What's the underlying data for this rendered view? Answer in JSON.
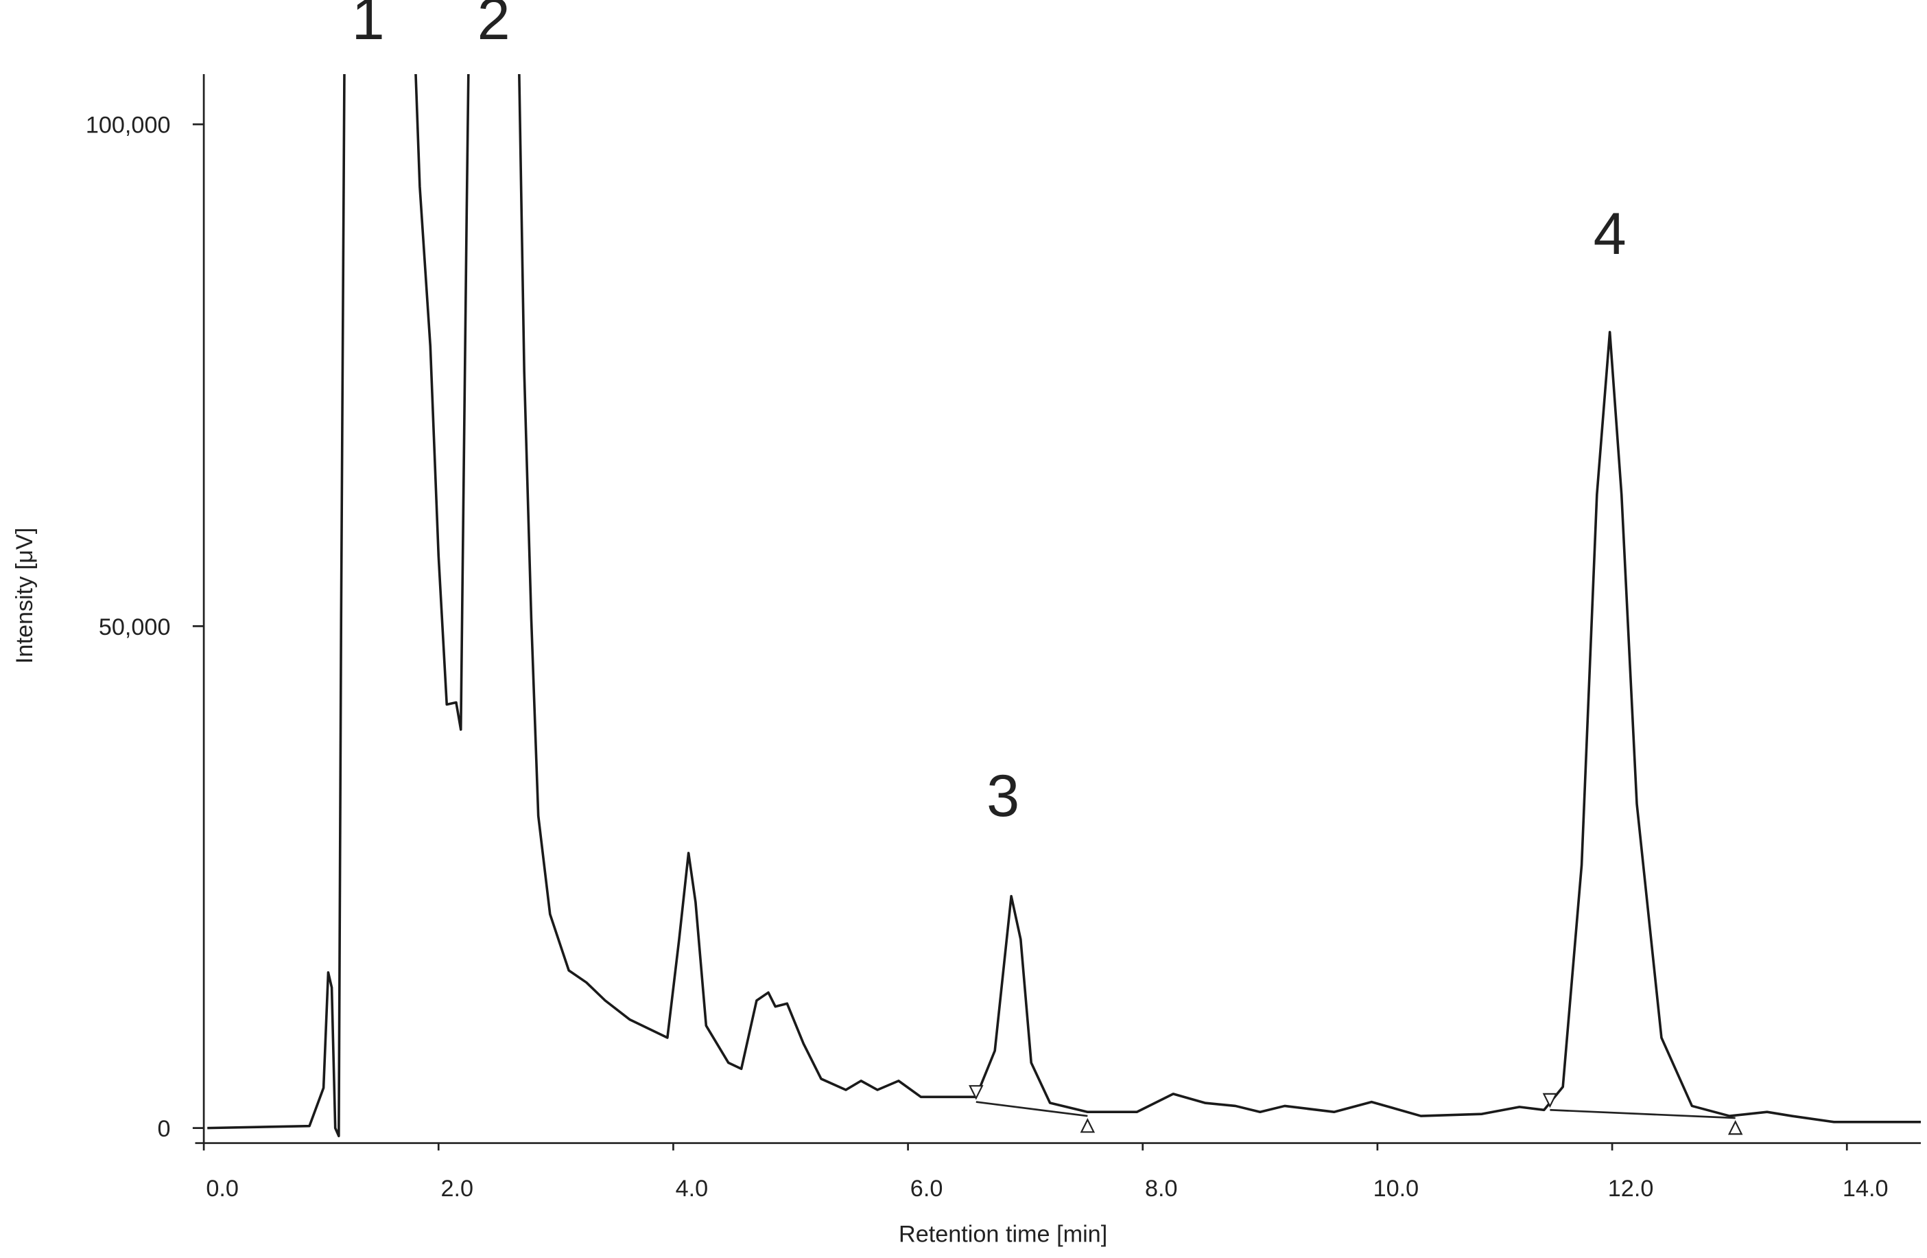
{
  "chart_data": {
    "type": "line",
    "xlabel": "Retention time [min]",
    "ylabel": "Intensity [μV]",
    "xlim": [
      0,
      14.63
    ],
    "ylim": [
      -1500,
      105000
    ],
    "xticks": [
      {
        "value": 0,
        "label": "0.0"
      },
      {
        "value": 2,
        "label": "2.0"
      },
      {
        "value": 4,
        "label": "4.0"
      },
      {
        "value": 6,
        "label": "6.0"
      },
      {
        "value": 8,
        "label": "8.0"
      },
      {
        "value": 10,
        "label": "10.0"
      },
      {
        "value": 12,
        "label": "12.0"
      },
      {
        "value": 14,
        "label": "14.0"
      }
    ],
    "yticks": [
      0,
      {
        "value": 50000,
        "label": "50,000"
      },
      {
        "value": 100000,
        "label": "100,000"
      }
    ],
    "grid": false,
    "series": [
      {
        "color": "#1a1a1a",
        "x": [
          0.03,
          0.9,
          1.02,
          1.06,
          1.09,
          1.12,
          1.15,
          1.17,
          1.2,
          1.79,
          1.84,
          1.93,
          2.0,
          2.07,
          2.15,
          2.19,
          2.24,
          2.26,
          2.68,
          2.73,
          2.79,
          2.85,
          2.95,
          3.11,
          3.26,
          3.42,
          3.63,
          3.95,
          4.05,
          4.13,
          4.19,
          4.28,
          4.47,
          4.58,
          4.71,
          4.81,
          4.87,
          4.97,
          5.11,
          5.26,
          5.47,
          5.6,
          5.74,
          5.92,
          6.11,
          6.37,
          6.58,
          6.74,
          6.88,
          6.96,
          7.05,
          7.21,
          7.53,
          7.95,
          8.26,
          8.53,
          8.79,
          9.0,
          9.21,
          9.63,
          9.95,
          10.37,
          10.89,
          11.21,
          11.42,
          11.58,
          11.74,
          11.87,
          11.98,
          12.08,
          12.21,
          12.42,
          12.68,
          13.0,
          13.32,
          13.53,
          13.89,
          14.63
        ],
        "values": [
          0,
          200,
          4000,
          15500,
          14000,
          0,
          -800,
          50800,
          110000,
          110000,
          93800,
          77900,
          57000,
          42200,
          42400,
          39700,
          91400,
          110000,
          110000,
          75400,
          50800,
          31100,
          21300,
          15700,
          14500,
          12700,
          10800,
          9000,
          18800,
          27400,
          22500,
          10200,
          6500,
          5900,
          12700,
          13500,
          12100,
          12400,
          8400,
          4900,
          3800,
          4700,
          3800,
          4700,
          3100,
          3100,
          3100,
          7700,
          23100,
          18800,
          6500,
          2500,
          1600,
          1600,
          3400,
          2500,
          2200,
          1600,
          2200,
          1600,
          2600,
          1200,
          1400,
          2100,
          1800,
          4100,
          26200,
          63100,
          79300,
          63100,
          32300,
          9000,
          2200,
          1200,
          1600,
          1200,
          600,
          600
        ]
      }
    ],
    "baselines": [
      {
        "x": [
          6.58,
          7.53
        ],
        "y": [
          2600,
          1200
        ]
      },
      {
        "x": [
          11.47,
          13.05
        ],
        "y": [
          1800,
          1000
        ]
      }
    ],
    "annotations": [
      {
        "text": "1",
        "x": 1.4,
        "y": 108500
      },
      {
        "text": "2",
        "x": 2.47,
        "y": 108500
      },
      {
        "text": "3",
        "x": 6.81,
        "y": 31100
      },
      {
        "text": "4",
        "x": 11.98,
        "y": 87100
      }
    ]
  }
}
